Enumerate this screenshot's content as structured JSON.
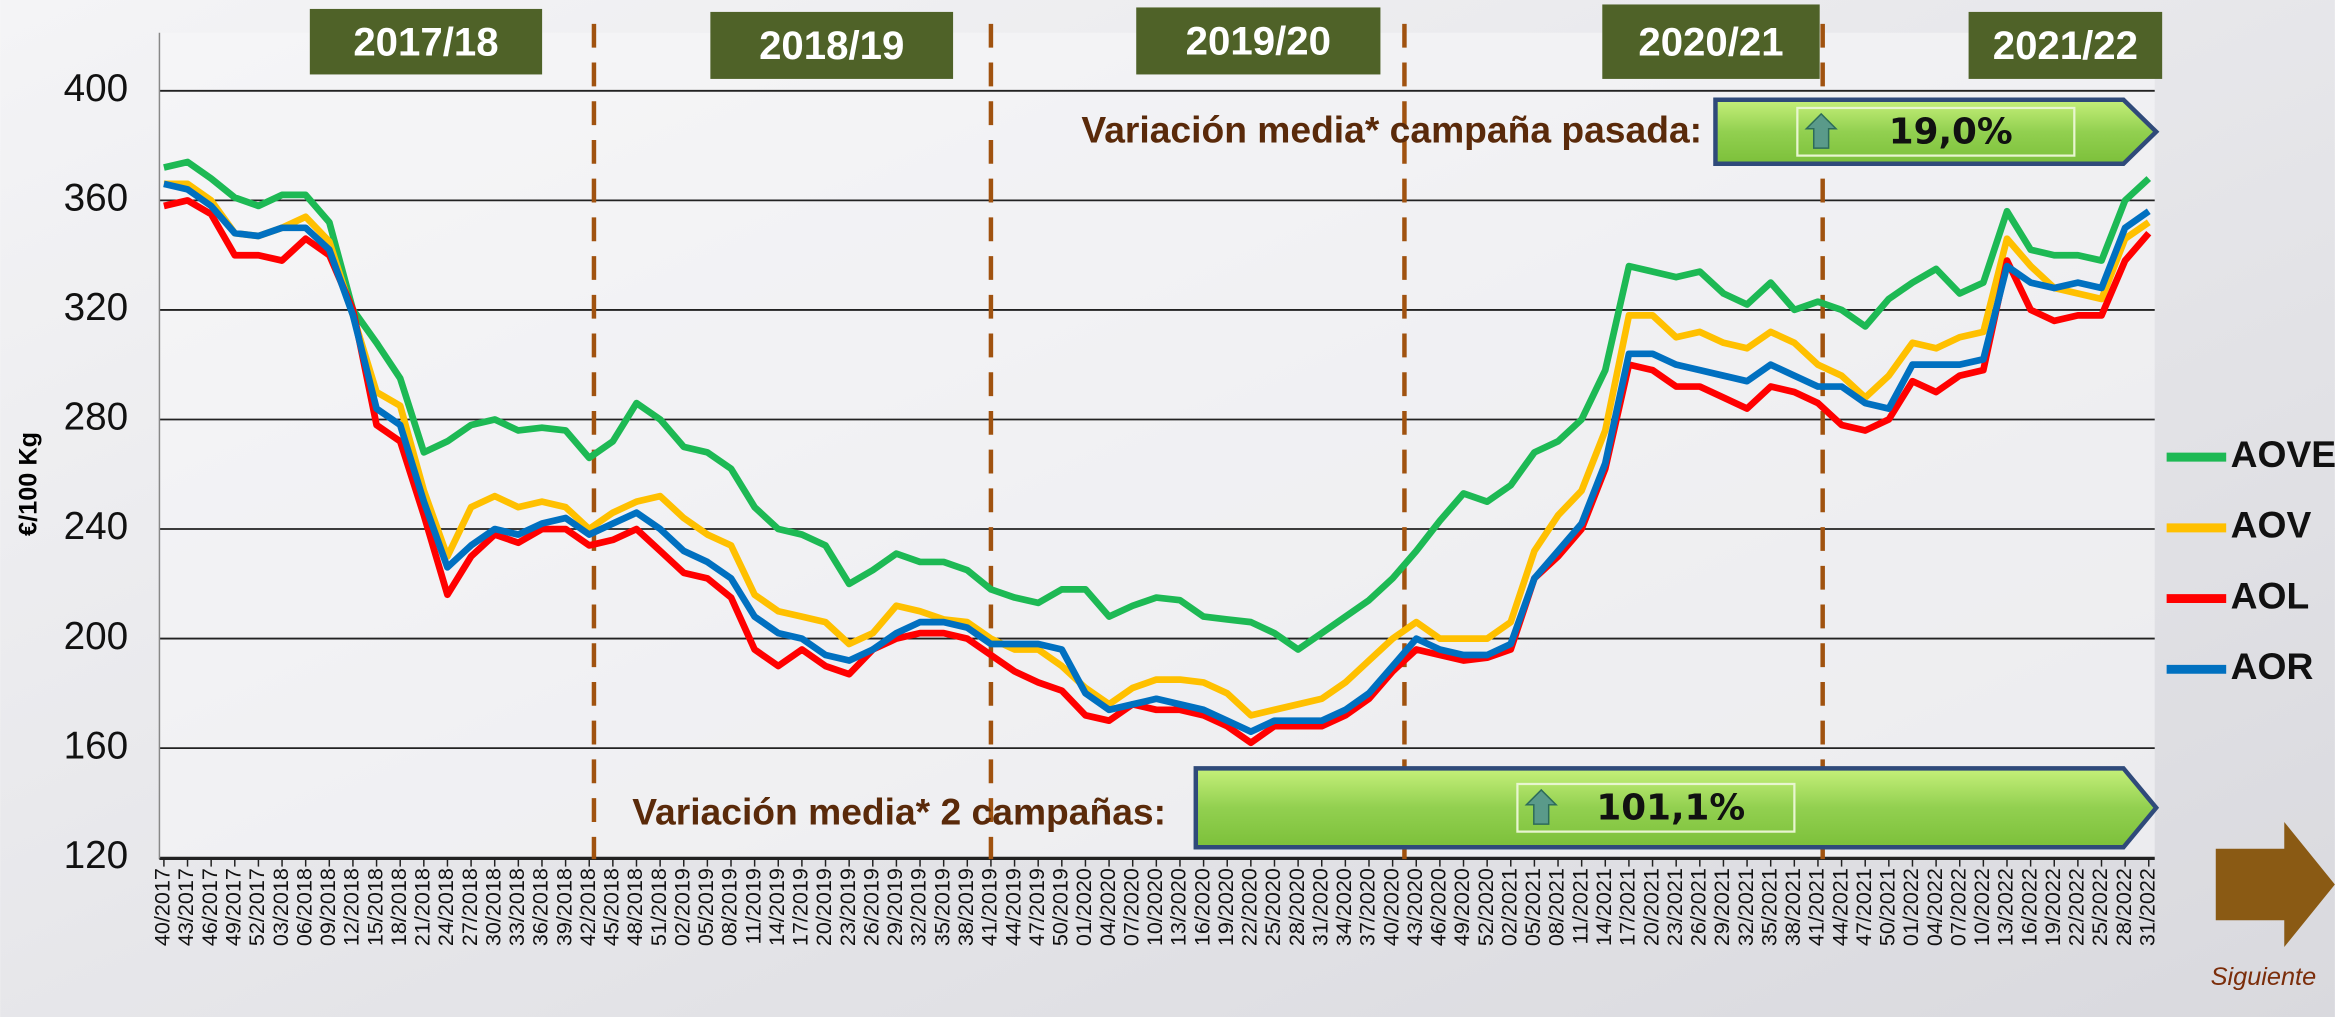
{
  "chart_data": {
    "type": "line",
    "y_label": "€/100 Kg",
    "campaigns": [
      "2017/18",
      "2018/19",
      "2019/20",
      "2020/21",
      "2021/22"
    ],
    "annotations": [
      {
        "text": "Variación media* campaña pasada:",
        "value_label": "19,0%"
      },
      {
        "text": "Variación media* 2 campañas:",
        "value_label": "101,1%"
      }
    ],
    "next_label": "Siguiente",
    "categories": [
      "40/2017",
      "43/2017",
      "46/2017",
      "49/2017",
      "52/2017",
      "03/2018",
      "06/2018",
      "09/2018",
      "12/2018",
      "15/2018",
      "18/2018",
      "21/2018",
      "24/2018",
      "27/2018",
      "30/2018",
      "33/2018",
      "36/2018",
      "39/2018",
      "42/2018",
      "45/2018",
      "48/2018",
      "51/2018",
      "02/2019",
      "05/2019",
      "08/2019",
      "11/2019",
      "14/2019",
      "17/2019",
      "20/2019",
      "23/2019",
      "26/2019",
      "29/2019",
      "32/2019",
      "35/2019",
      "38/2019",
      "41/2019",
      "44/2019",
      "47/2019",
      "50/2019",
      "01/2020",
      "04/2020",
      "07/2020",
      "10/2020",
      "13/2020",
      "16/2020",
      "19/2020",
      "22/2020",
      "25/2020",
      "28/2020",
      "31/2020",
      "34/2020",
      "37/2020",
      "40/2020",
      "43/2020",
      "46/2020",
      "49/2020",
      "52/2020",
      "02/2021",
      "05/2021",
      "08/2021",
      "11/2021",
      "14/2021",
      "17/2021",
      "20/2021",
      "23/2021",
      "26/2021",
      "29/2021",
      "32/2021",
      "35/2021",
      "38/2021",
      "41/2021",
      "44/2021",
      "47/2021",
      "50/2021",
      "01/2022",
      "04/2022",
      "07/2022",
      "10/2022",
      "13/2022",
      "16/2022",
      "19/2022",
      "22/2022",
      "25/2022",
      "28/2022",
      "31/2022"
    ],
    "series": [
      {
        "name": "AOVE",
        "color": "#1db954",
        "values": [
          372,
          374,
          368,
          361,
          358,
          362,
          362,
          352,
          320,
          308,
          295,
          268,
          272,
          278,
          280,
          276,
          277,
          276,
          266,
          272,
          286,
          280,
          270,
          268,
          262,
          248,
          240,
          238,
          234,
          220,
          225,
          231,
          228,
          228,
          225,
          218,
          215,
          213,
          218,
          218,
          208,
          212,
          215,
          214,
          208,
          207,
          206,
          202,
          196,
          202,
          208,
          214,
          222,
          232,
          243,
          253,
          250,
          256,
          268,
          272,
          280,
          298,
          336,
          334,
          332,
          334,
          326,
          322,
          330,
          320,
          323,
          320,
          314,
          324,
          330,
          335,
          326,
          330,
          356,
          342,
          340,
          340,
          338,
          360,
          368
        ]
      },
      {
        "name": "AOV",
        "color": "#ffc000",
        "values": [
          366,
          366,
          360,
          348,
          347,
          350,
          354,
          345,
          318,
          290,
          285,
          254,
          230,
          248,
          252,
          248,
          250,
          248,
          240,
          246,
          250,
          252,
          244,
          238,
          234,
          216,
          210,
          208,
          206,
          198,
          202,
          212,
          210,
          207,
          206,
          200,
          196,
          196,
          190,
          182,
          176,
          182,
          185,
          185,
          184,
          180,
          172,
          174,
          176,
          178,
          184,
          192,
          200,
          206,
          200,
          200,
          200,
          206,
          232,
          245,
          254,
          276,
          318,
          318,
          310,
          312,
          308,
          306,
          312,
          308,
          300,
          296,
          288,
          296,
          308,
          306,
          310,
          312,
          346,
          336,
          328,
          326,
          324,
          346,
          352
        ]
      },
      {
        "name": "AOL",
        "color": "#ff0000",
        "values": [
          358,
          360,
          355,
          340,
          340,
          338,
          346,
          340,
          320,
          278,
          272,
          245,
          216,
          230,
          238,
          235,
          240,
          240,
          234,
          236,
          240,
          232,
          224,
          222,
          215,
          196,
          190,
          196,
          190,
          187,
          196,
          200,
          202,
          202,
          200,
          194,
          188,
          184,
          181,
          172,
          170,
          176,
          174,
          174,
          172,
          168,
          162,
          168,
          168,
          168,
          172,
          178,
          188,
          196,
          194,
          192,
          193,
          196,
          222,
          230,
          240,
          262,
          300,
          298,
          292,
          292,
          288,
          284,
          292,
          290,
          286,
          278,
          276,
          280,
          294,
          290,
          296,
          298,
          338,
          320,
          316,
          318,
          318,
          338,
          348
        ]
      },
      {
        "name": "AOR",
        "color": "#0070c0",
        "values": [
          366,
          364,
          358,
          348,
          347,
          350,
          350,
          342,
          318,
          284,
          278,
          250,
          226,
          234,
          240,
          238,
          242,
          244,
          238,
          242,
          246,
          240,
          232,
          228,
          222,
          208,
          202,
          200,
          194,
          192,
          196,
          202,
          206,
          206,
          204,
          198,
          198,
          198,
          196,
          180,
          174,
          176,
          178,
          176,
          174,
          170,
          166,
          170,
          170,
          170,
          174,
          180,
          190,
          200,
          196,
          194,
          194,
          198,
          222,
          232,
          242,
          264,
          304,
          304,
          300,
          298,
          296,
          294,
          300,
          296,
          292,
          292,
          286,
          284,
          300,
          300,
          300,
          302,
          336,
          330,
          328,
          330,
          328,
          350,
          356
        ]
      }
    ],
    "ylim": [
      120,
      400
    ],
    "yticks": [
      120,
      160,
      200,
      240,
      280,
      320,
      360,
      400
    ],
    "grid": true,
    "legend": "right"
  }
}
